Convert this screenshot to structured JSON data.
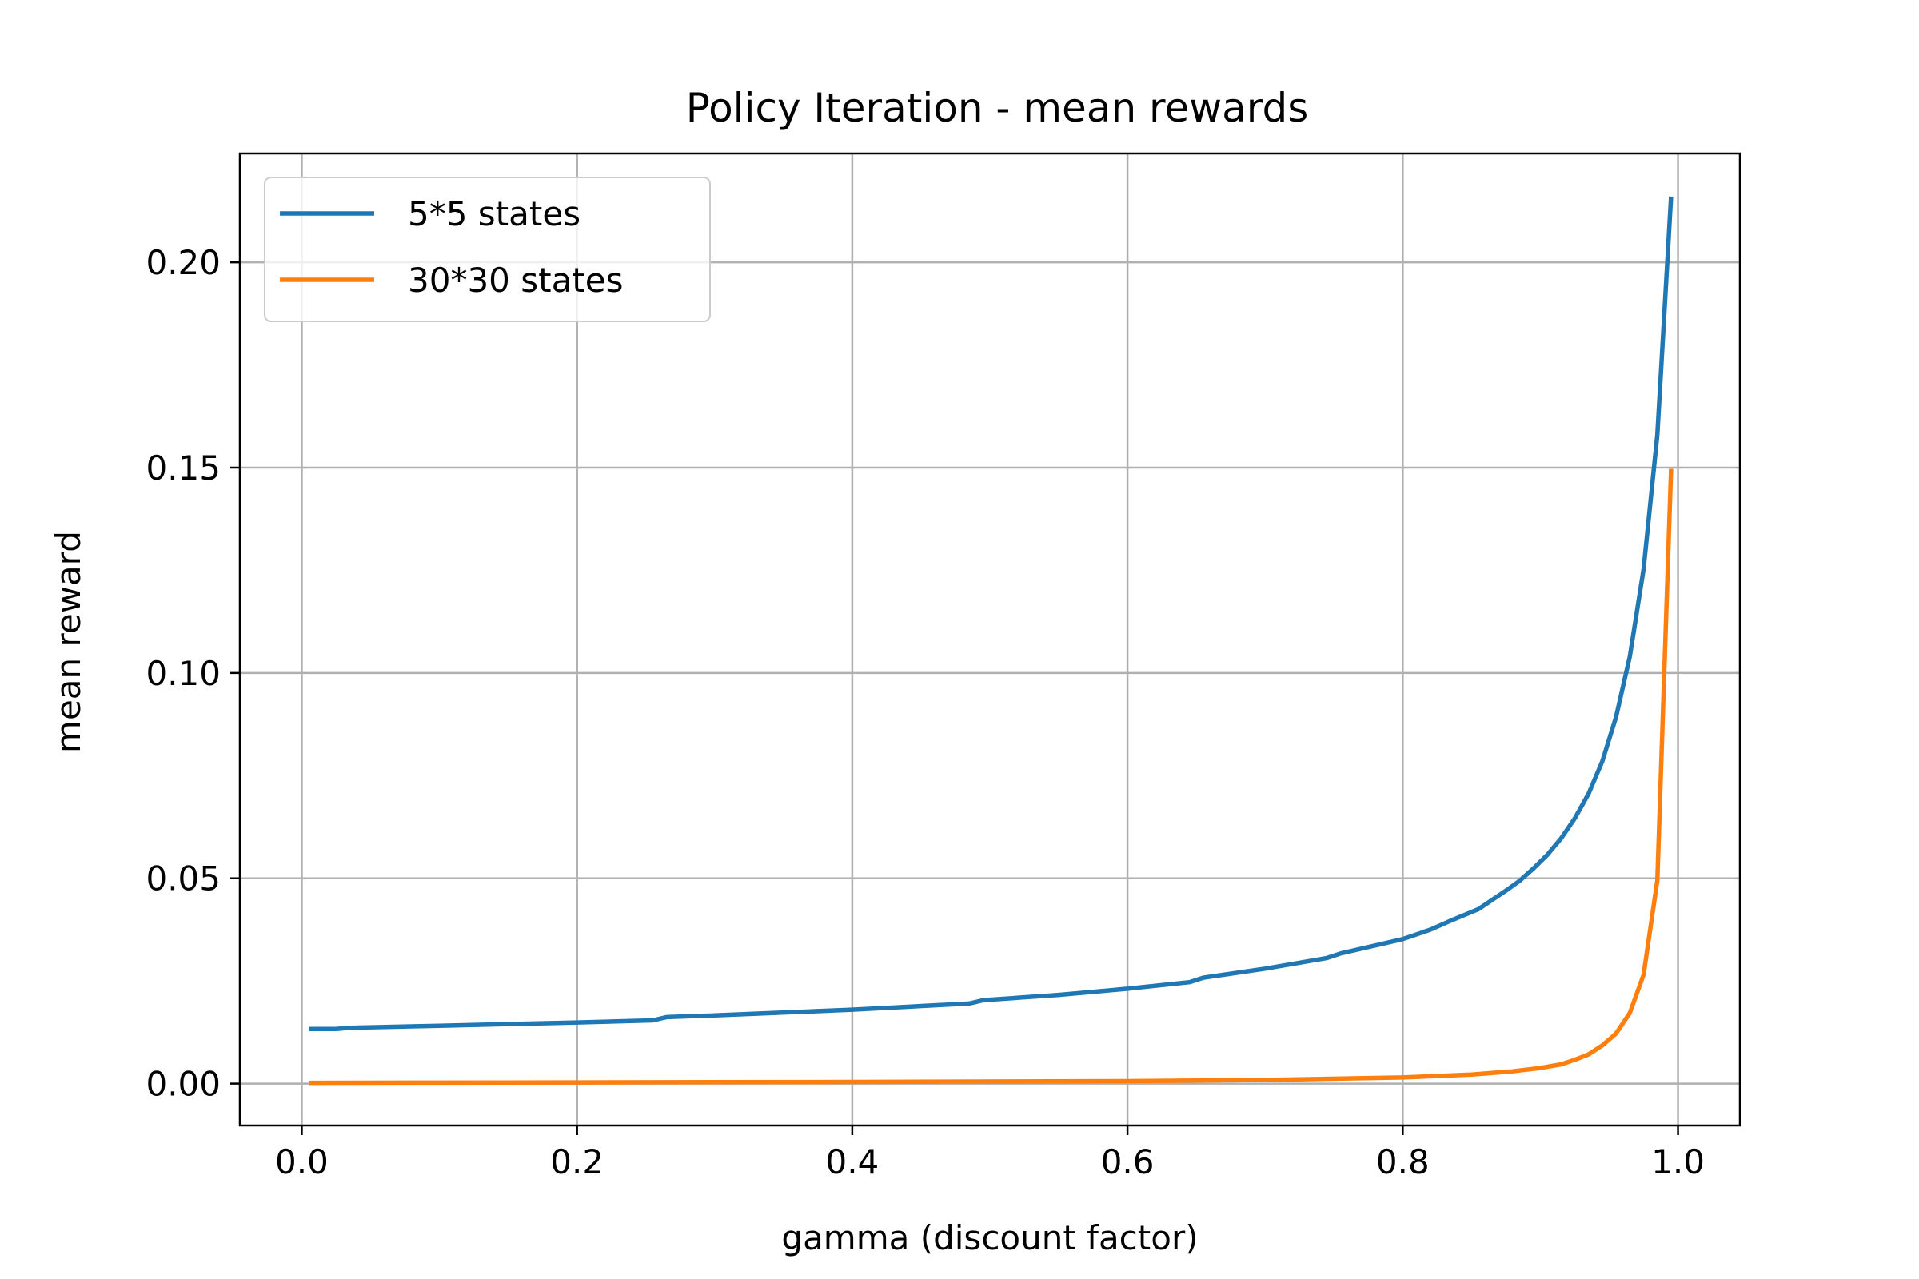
{
  "chart_data": {
    "type": "line",
    "title": "Policy Iteration - mean rewards",
    "xlabel": "gamma (discount factor)",
    "ylabel": "mean reward",
    "xlim": [
      -0.045,
      1.045
    ],
    "ylim": [
      -0.0102,
      0.2265
    ],
    "xticks": [
      0.0,
      0.2,
      0.4,
      0.6,
      0.8,
      1.0
    ],
    "xtick_labels": [
      "0.0",
      "0.2",
      "0.4",
      "0.6",
      "0.8",
      "1.0"
    ],
    "yticks": [
      0.0,
      0.05,
      0.1,
      0.15,
      0.2
    ],
    "ytick_labels": [
      "0.00",
      "0.05",
      "0.10",
      "0.15",
      "0.20"
    ],
    "grid": true,
    "legend_position": "top-left",
    "series": [
      {
        "name": "5*5 states",
        "color": "#1f77b4",
        "x": [
          0.005,
          0.025,
          0.035,
          0.1,
          0.2,
          0.255,
          0.265,
          0.3,
          0.4,
          0.485,
          0.495,
          0.55,
          0.6,
          0.645,
          0.655,
          0.7,
          0.745,
          0.755,
          0.8,
          0.82,
          0.835,
          0.855,
          0.875,
          0.885,
          0.895,
          0.905,
          0.915,
          0.925,
          0.935,
          0.945,
          0.955,
          0.965,
          0.975,
          0.985,
          0.995
        ],
        "y": [
          0.0133,
          0.0133,
          0.0136,
          0.0141,
          0.0149,
          0.0154,
          0.0162,
          0.0166,
          0.018,
          0.0195,
          0.0203,
          0.0216,
          0.0231,
          0.0247,
          0.0258,
          0.028,
          0.0306,
          0.0317,
          0.0352,
          0.0375,
          0.0397,
          0.0425,
          0.047,
          0.0494,
          0.0524,
          0.0557,
          0.0597,
          0.0646,
          0.0706,
          0.0785,
          0.0893,
          0.104,
          0.1253,
          0.158,
          0.216
        ]
      },
      {
        "name": "30*30 states",
        "color": "#ff7f0e",
        "x": [
          0.005,
          0.2,
          0.4,
          0.6,
          0.7,
          0.8,
          0.85,
          0.88,
          0.9,
          0.915,
          0.925,
          0.935,
          0.945,
          0.955,
          0.965,
          0.975,
          0.985,
          0.995
        ],
        "y": [
          0.0002,
          0.0003,
          0.0004,
          0.0006,
          0.0009,
          0.0015,
          0.0022,
          0.003,
          0.0038,
          0.0047,
          0.0058,
          0.0071,
          0.0093,
          0.0122,
          0.0172,
          0.0265,
          0.0495,
          0.1497
        ]
      }
    ]
  }
}
